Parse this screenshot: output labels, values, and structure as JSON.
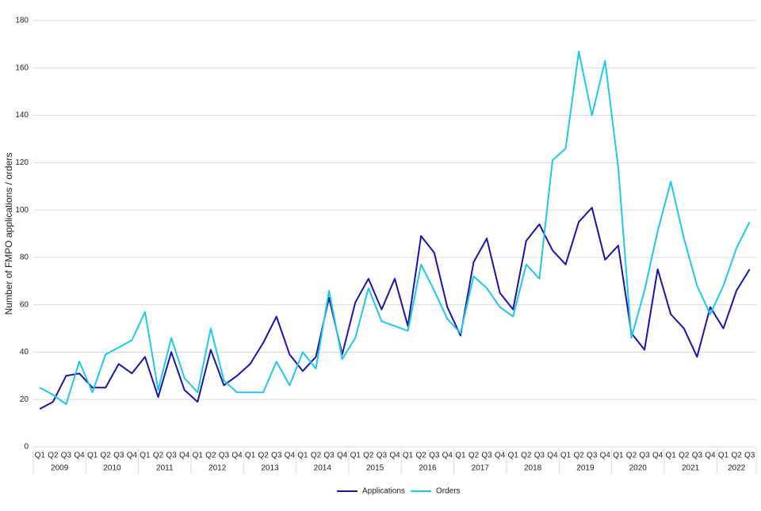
{
  "chart_data": {
    "type": "line",
    "y_label": "Number of FMPO applications / orders",
    "categories": [
      "Q1",
      "Q2",
      "Q3",
      "Q4",
      "Q1",
      "Q2",
      "Q3",
      "Q4",
      "Q1",
      "Q2",
      "Q3",
      "Q4",
      "Q1",
      "Q2",
      "Q3",
      "Q4",
      "Q1",
      "Q2",
      "Q3",
      "Q4",
      "Q1",
      "Q2",
      "Q3",
      "Q4",
      "Q1",
      "Q2",
      "Q3",
      "Q4",
      "Q1",
      "Q2",
      "Q3",
      "Q4",
      "Q1",
      "Q2",
      "Q3",
      "Q4",
      "Q1",
      "Q2",
      "Q3",
      "Q4",
      "Q1",
      "Q2",
      "Q3",
      "Q4",
      "Q1",
      "Q2",
      "Q3",
      "Q4",
      "Q1",
      "Q2",
      "Q3",
      "Q4",
      "Q1",
      "Q2",
      "Q3"
    ],
    "years": [
      "2009",
      "2010",
      "2011",
      "2012",
      "2013",
      "2014",
      "2015",
      "2016",
      "2017",
      "2018",
      "2019",
      "2020",
      "2021",
      "2022"
    ],
    "series": [
      {
        "name": "Applications",
        "color": "#1a14a8",
        "values": [
          16,
          19,
          30,
          31,
          25,
          25,
          35,
          31,
          38,
          21,
          40,
          24,
          19,
          41,
          26,
          30,
          35,
          44,
          55,
          39,
          32,
          38,
          63,
          39,
          61,
          71,
          58,
          71,
          51,
          89,
          82,
          59,
          47,
          78,
          88,
          65,
          58,
          87,
          94,
          83,
          77,
          95,
          101,
          79,
          85,
          48,
          41,
          75,
          56,
          50,
          38,
          59,
          50,
          66,
          75
        ]
      },
      {
        "name": "Orders",
        "color": "#1ec8ec",
        "values": [
          25,
          22,
          18,
          36,
          23,
          39,
          42,
          45,
          57,
          24,
          46,
          29,
          23,
          50,
          28,
          23,
          23,
          23,
          36,
          26,
          40,
          33,
          66,
          37,
          46,
          67,
          53,
          51,
          49,
          77,
          66,
          54,
          48,
          72,
          67,
          59,
          55,
          77,
          71,
          121,
          126,
          167,
          140,
          163,
          118,
          46,
          66,
          91,
          112,
          88,
          68,
          56,
          68,
          84,
          95
        ]
      }
    ],
    "ylim": [
      0,
      180
    ],
    "yticks": [
      0,
      20,
      40,
      60,
      80,
      100,
      120,
      140,
      160,
      180
    ],
    "grid": true
  }
}
